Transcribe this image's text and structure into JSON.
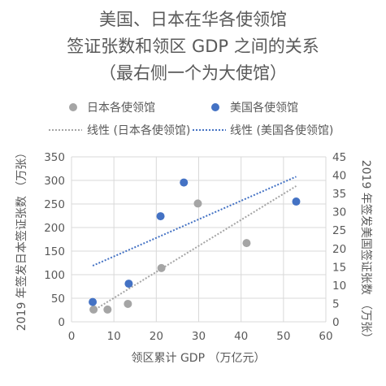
{
  "chart_data": {
    "type": "scatter",
    "title_lines": [
      "美国、日本在华各使领馆",
      "签证张数和领区 GDP 之间的关系",
      "（最右侧一个为大使馆）"
    ],
    "xlabel": "领区累计 GDP （万亿元）",
    "ylabel_left": "2019 年签发日本签证张数 （万张）",
    "ylabel_right": "2019 年签发美国签证张数 （万张）",
    "xlim": [
      0,
      60
    ],
    "ylim_left": [
      0,
      350
    ],
    "ylim_right": [
      0,
      45
    ],
    "xticks": [
      "0",
      "10",
      "20",
      "30",
      "40",
      "50",
      "60"
    ],
    "yticks_left": [
      "0",
      "50",
      "100",
      "150",
      "200",
      "250",
      "300",
      "350"
    ],
    "yticks_right": [
      "0",
      "5",
      "10",
      "15",
      "20",
      "25",
      "30",
      "35",
      "40",
      "45"
    ],
    "grid": true,
    "legend_position": "top",
    "series": [
      {
        "name": "日本各使领馆",
        "axis": "left",
        "color": "#a5a5a5",
        "points": [
          [
            5.2,
            26
          ],
          [
            8.5,
            26
          ],
          [
            13.3,
            38
          ],
          [
            21.2,
            114
          ],
          [
            29.8,
            251
          ],
          [
            41.3,
            167
          ]
        ]
      },
      {
        "name": "美国各使领馆",
        "axis": "right",
        "color": "#4472c4",
        "points": [
          [
            5.0,
            5.4
          ],
          [
            13.5,
            10.4
          ],
          [
            21.0,
            28.8
          ],
          [
            26.5,
            38.0
          ],
          [
            53.0,
            32.8
          ]
        ]
      }
    ],
    "trendlines": [
      {
        "name": "线性 (日本各使领馆)",
        "axis": "left",
        "color": "#a5a5a5",
        "from": [
          5,
          23
        ],
        "to": [
          53,
          288
        ]
      },
      {
        "name": "线性 (美国各使领馆)",
        "axis": "right",
        "color": "#4472c4",
        "from": [
          5,
          15.3
        ],
        "to": [
          53,
          39.6
        ]
      }
    ]
  }
}
